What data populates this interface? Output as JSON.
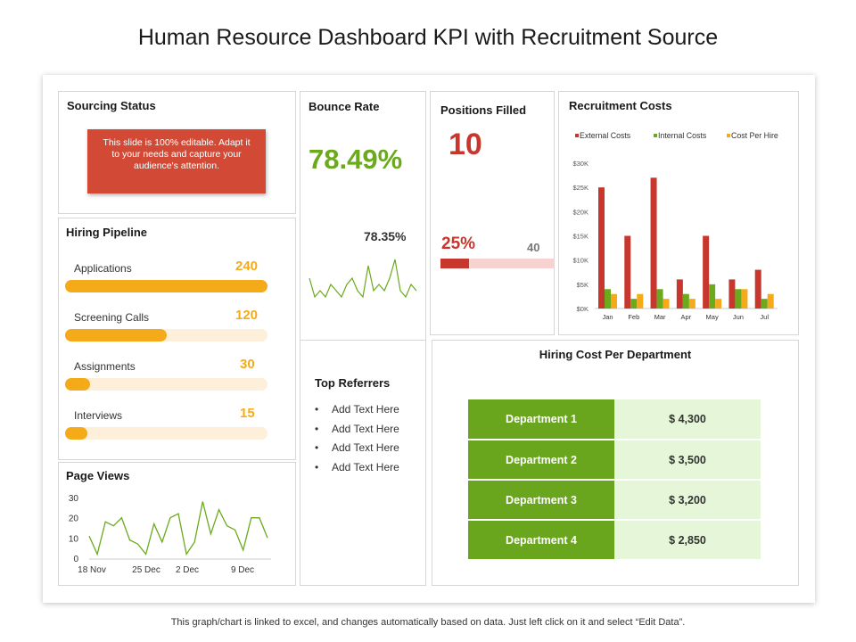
{
  "title": "Human Resource Dashboard KPI with Recruitment Source",
  "footer": "This graph/chart is linked to excel, and changes automatically based on data. Just left click on it and select “Edit Data”.",
  "sourcing_status": {
    "title": "Sourcing Status",
    "note": "This slide is 100% editable. Adapt it to your needs and capture your audience's attention."
  },
  "hiring_pipeline": {
    "title": "Hiring Pipeline",
    "max": 240,
    "items": [
      {
        "label": "Applications",
        "value": "240",
        "amount": 240
      },
      {
        "label": "Screening Calls",
        "value": "120",
        "amount": 120
      },
      {
        "label": "Assignments",
        "value": "30",
        "amount": 30
      },
      {
        "label": "Interviews",
        "value": "15",
        "amount": 15
      }
    ]
  },
  "bounce_rate": {
    "title": "Bounce Rate",
    "value": "78.49%",
    "secondary": "78.35%",
    "sparkline": [
      6,
      3,
      4,
      3,
      5,
      4,
      3,
      5,
      6,
      4,
      3,
      8,
      4,
      5,
      4,
      6,
      9,
      4,
      3,
      5,
      4
    ]
  },
  "positions_filled": {
    "title": "Positions Filled",
    "value": "10",
    "percent": "25%",
    "total": "40",
    "fraction": 0.25
  },
  "top_referrers": {
    "title": "Top Referrers",
    "items": [
      "Add Text Here",
      "Add Text Here",
      "Add Text Here",
      "Add Text Here"
    ]
  },
  "hiring_cost": {
    "title": "Hiring Cost Per Department",
    "rows": [
      {
        "department": "Department 1",
        "cost": "$ 4,300"
      },
      {
        "department": "Department 2",
        "cost": "$ 3,500"
      },
      {
        "department": "Department 3",
        "cost": "$ 3,200"
      },
      {
        "department": "Department 4",
        "cost": "$ 2,850"
      }
    ]
  },
  "colors": {
    "external": "#c8372d",
    "internal": "#6aaa1c",
    "cost_per_hire": "#f5ab19",
    "sparkline": "#6aaa1c"
  },
  "chart_data": [
    {
      "type": "bar",
      "title": "Recruitment Costs",
      "categories": [
        "Jan",
        "Feb",
        "Mar",
        "Apr",
        "May",
        "Jun",
        "Jul"
      ],
      "series": [
        {
          "name": "External Costs",
          "values": [
            25000,
            15000,
            27000,
            6000,
            15000,
            6000,
            8000
          ]
        },
        {
          "name": "Internal Costs",
          "values": [
            4000,
            2000,
            4000,
            3000,
            5000,
            4000,
            2000
          ]
        },
        {
          "name": "Cost Per Hire",
          "values": [
            3000,
            3000,
            2000,
            2000,
            2000,
            4000,
            3000
          ]
        }
      ],
      "ylim": [
        0,
        30000
      ],
      "yticks": [
        "$0K",
        "$5K",
        "$10K",
        "$15K",
        "$20K",
        "$25K",
        "$30K"
      ],
      "legend": "top"
    },
    {
      "type": "line",
      "title": "Page Views",
      "x_tick_labels": [
        "18 Nov",
        "25 Dec",
        "2 Dec",
        "9 Dec"
      ],
      "yticks": [
        "0",
        "10",
        "20",
        "30"
      ],
      "ylim": [
        0,
        30
      ],
      "values": [
        11,
        2,
        18,
        16,
        20,
        9,
        7,
        2,
        17,
        8,
        20,
        22,
        2,
        8,
        28,
        12,
        24,
        16,
        14,
        4,
        20,
        20,
        10
      ]
    }
  ]
}
